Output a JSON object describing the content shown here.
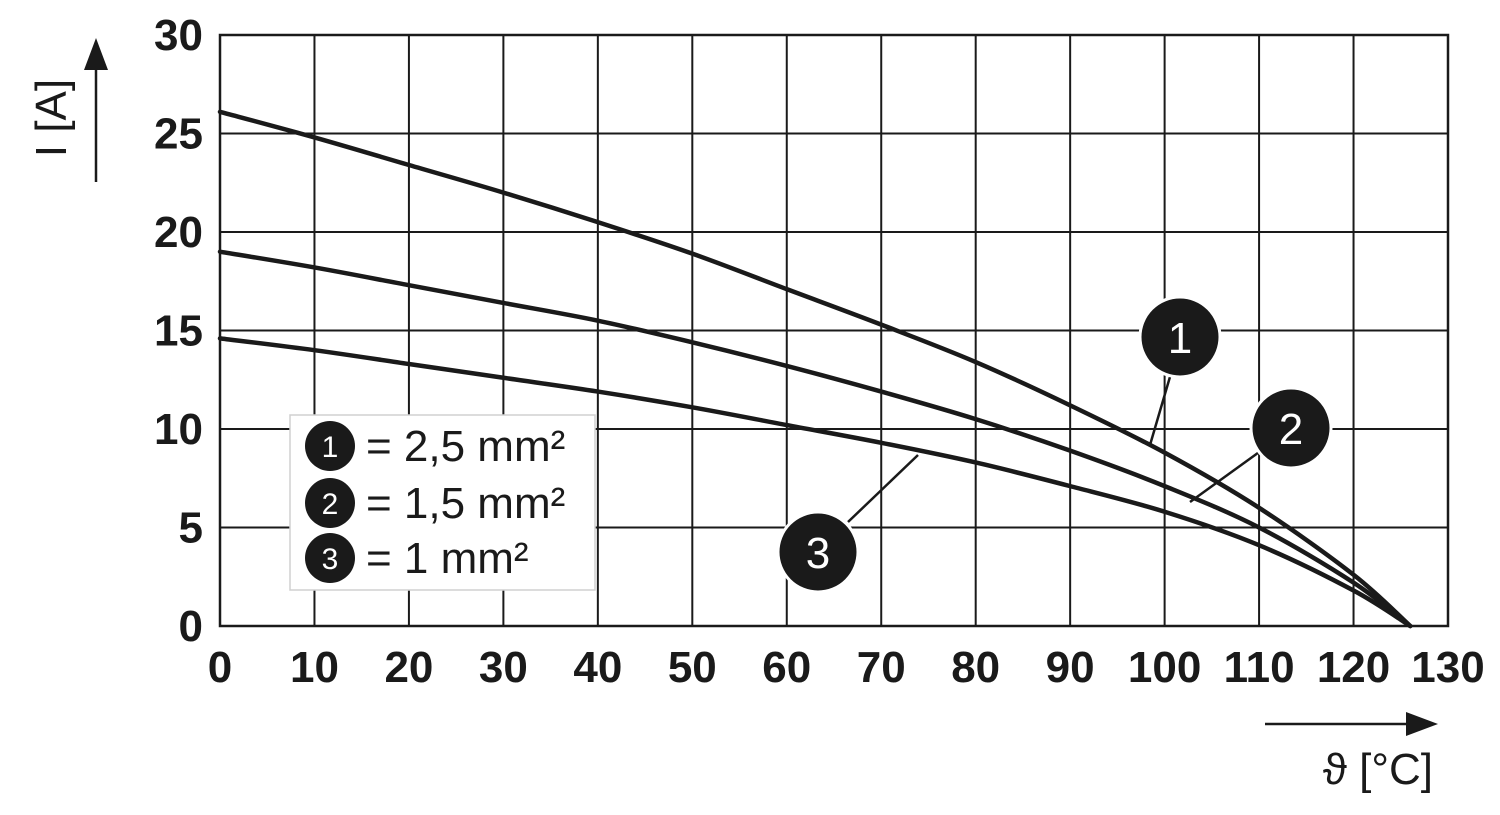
{
  "chart_data": {
    "type": "line",
    "title": "",
    "xlabel": "ϑ [°C]",
    "ylabel": "I [A]",
    "xlim": [
      0,
      130
    ],
    "ylim": [
      0,
      30
    ],
    "x_ticks": [
      "0",
      "10",
      "20",
      "30",
      "40",
      "50",
      "60",
      "70",
      "80",
      "90",
      "100",
      "110",
      "120",
      "130"
    ],
    "y_ticks": [
      "0",
      "5",
      "10",
      "15",
      "20",
      "25",
      "30"
    ],
    "grid": true,
    "legend_position": "left",
    "series": [
      {
        "marker": "1",
        "legend_text": "= 2,5 mm²",
        "x": [
          0,
          10,
          20,
          30,
          40,
          50,
          60,
          70,
          80,
          90,
          100,
          110,
          120,
          126
        ],
        "y": [
          26.1,
          24.8,
          23.4,
          22.0,
          20.5,
          18.9,
          17.1,
          15.3,
          13.4,
          11.2,
          8.8,
          6.0,
          2.6,
          0
        ]
      },
      {
        "marker": "2",
        "legend_text": "= 1,5 mm²",
        "x": [
          0,
          10,
          20,
          30,
          40,
          50,
          60,
          70,
          80,
          90,
          100,
          110,
          120,
          126
        ],
        "y": [
          19.0,
          18.2,
          17.3,
          16.4,
          15.5,
          14.4,
          13.2,
          11.9,
          10.5,
          8.9,
          7.1,
          5.0,
          2.2,
          0
        ]
      },
      {
        "marker": "3",
        "legend_text": "= 1 mm²",
        "x": [
          0,
          10,
          20,
          30,
          40,
          50,
          60,
          70,
          80,
          90,
          100,
          110,
          120,
          126
        ],
        "y": [
          14.6,
          14.0,
          13.3,
          12.6,
          11.9,
          11.1,
          10.2,
          9.3,
          8.3,
          7.1,
          5.8,
          4.1,
          1.8,
          0
        ]
      }
    ]
  }
}
